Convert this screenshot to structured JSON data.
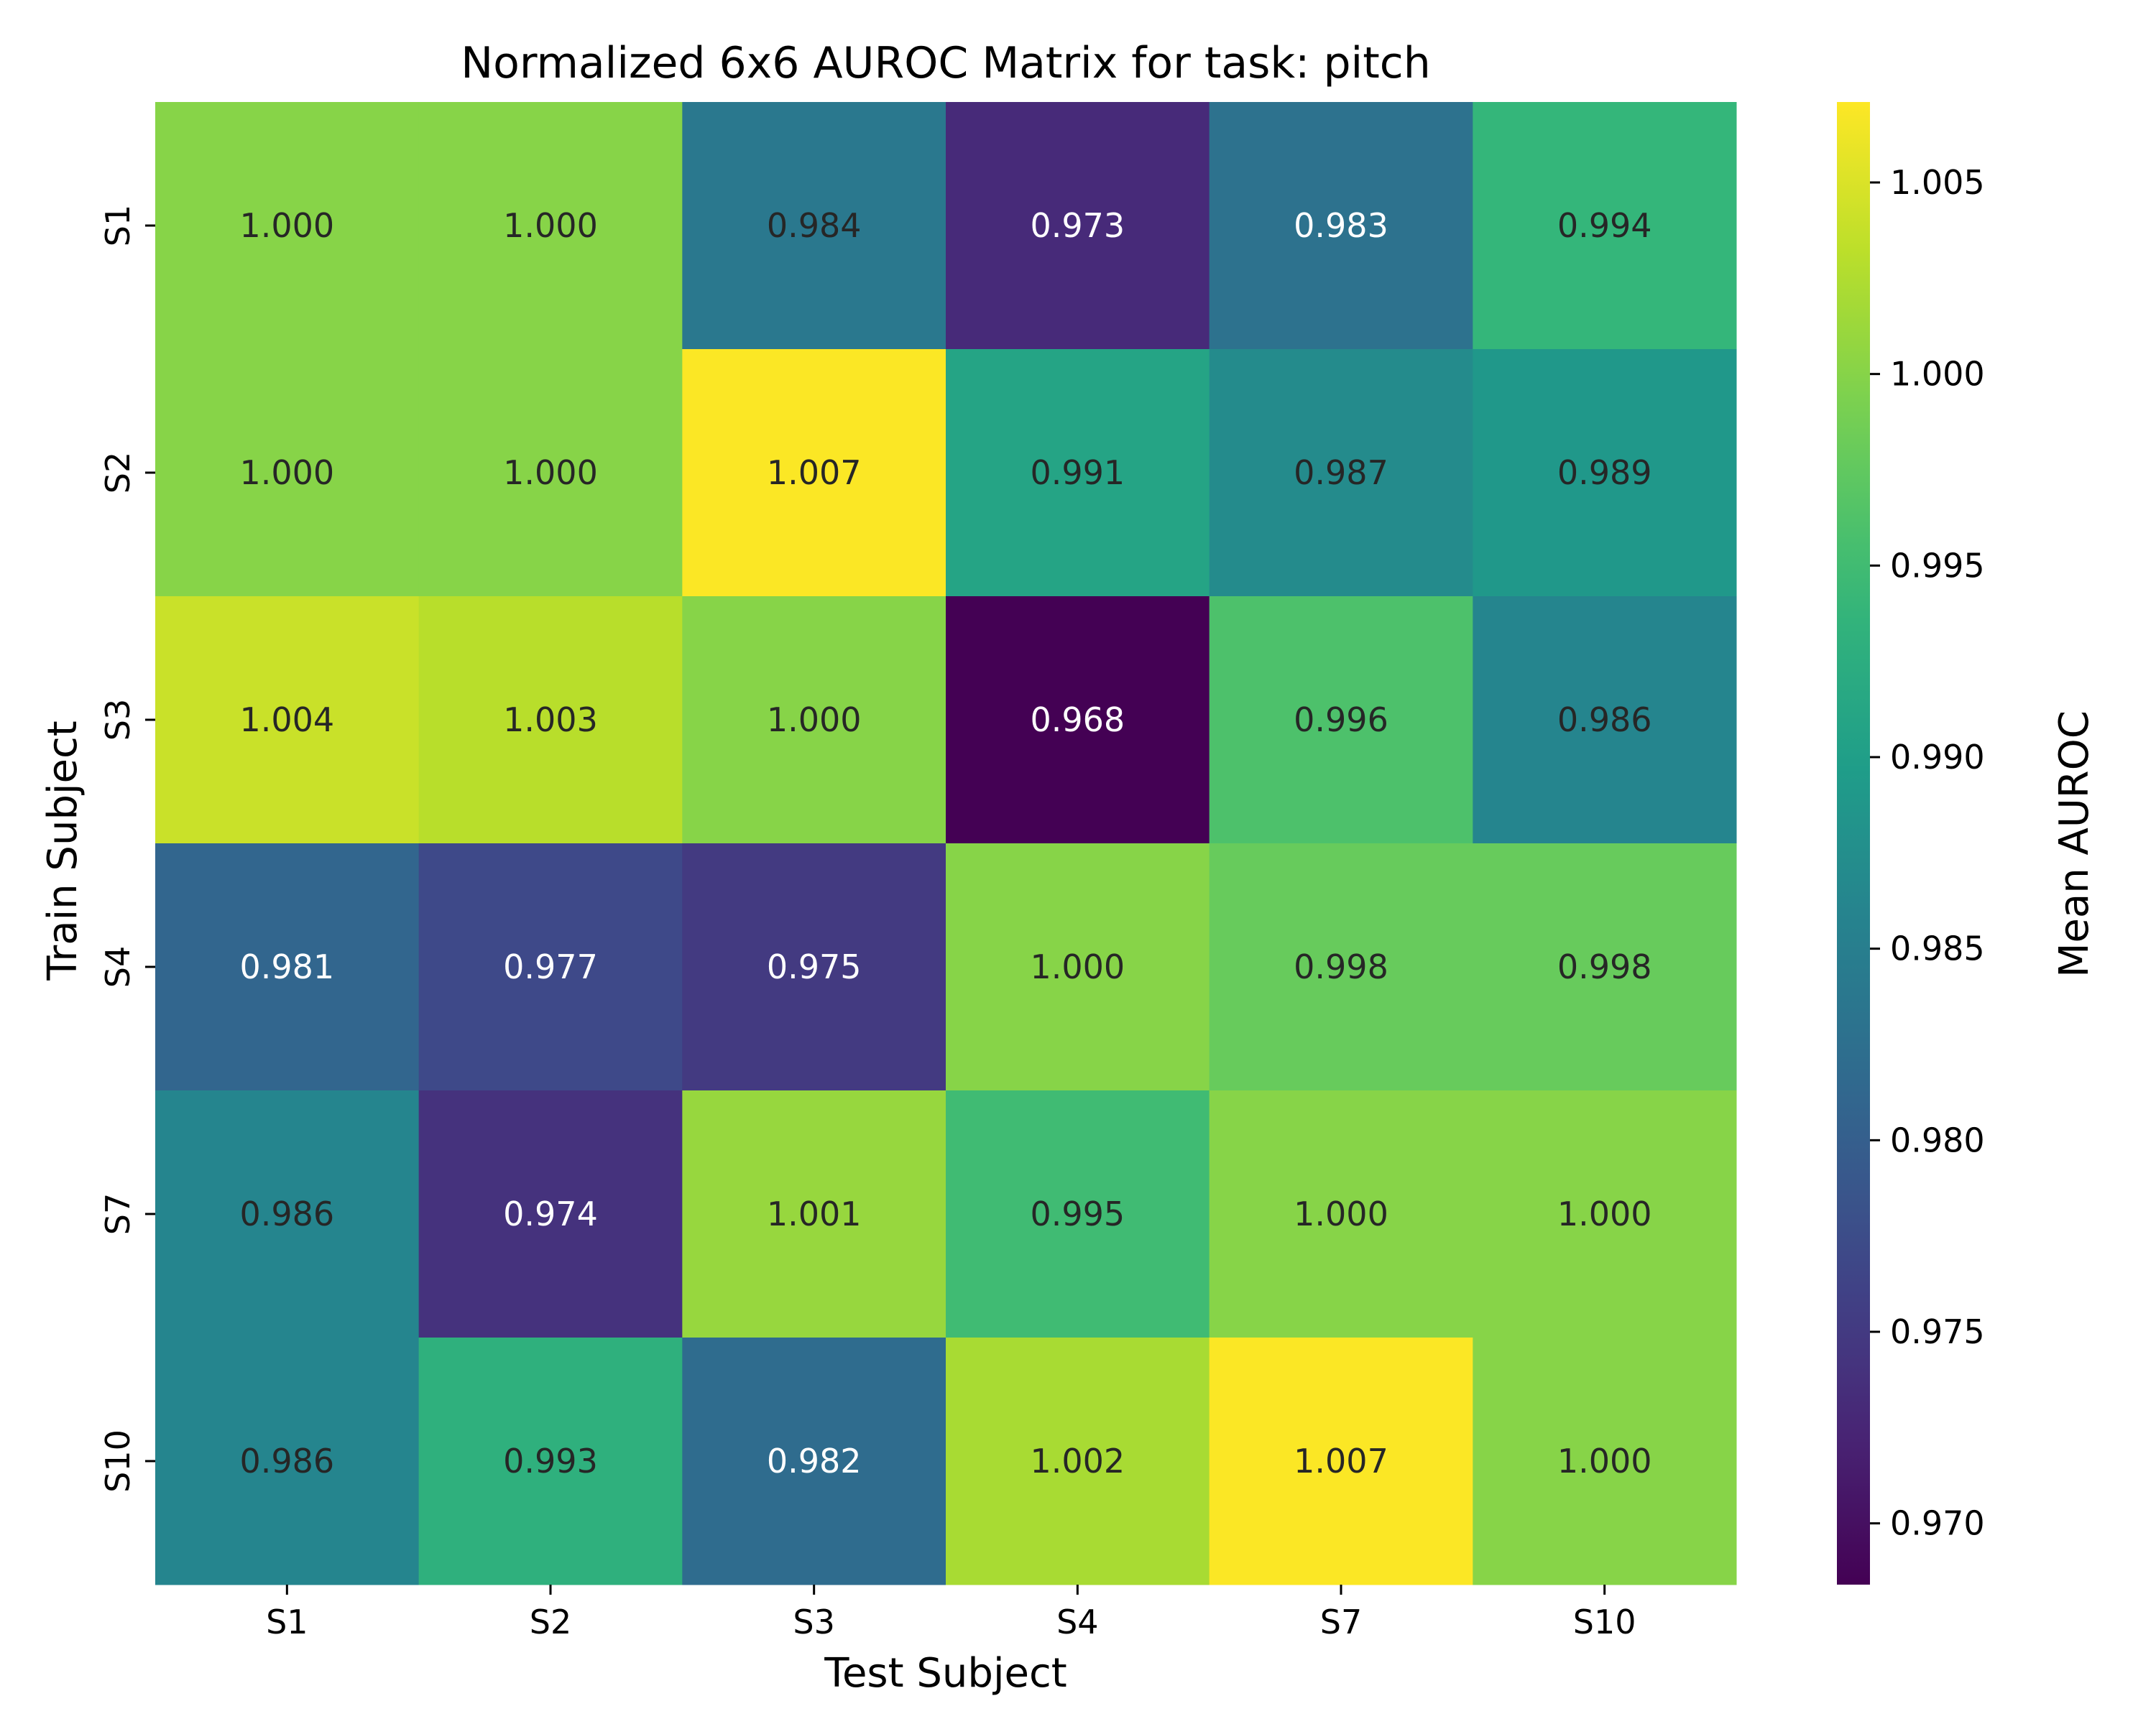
{
  "chart_data": {
    "type": "heatmap",
    "title": "Normalized 6x6 AUROC Matrix for task: pitch",
    "xlabel": "Test Subject",
    "ylabel": "Train Subject",
    "colorbar_label": "Mean AUROC",
    "x_categories": [
      "S1",
      "S2",
      "S3",
      "S4",
      "S7",
      "S10"
    ],
    "y_categories": [
      "S1",
      "S2",
      "S3",
      "S4",
      "S7",
      "S10"
    ],
    "values": [
      [
        1.0,
        1.0,
        0.984,
        0.973,
        0.983,
        0.994
      ],
      [
        1.0,
        1.0,
        1.007,
        0.991,
        0.987,
        0.989
      ],
      [
        1.004,
        1.003,
        1.0,
        0.968,
        0.996,
        0.986
      ],
      [
        0.981,
        0.977,
        0.975,
        1.0,
        0.998,
        0.998
      ],
      [
        0.986,
        0.974,
        1.001,
        0.995,
        1.0,
        1.0
      ],
      [
        0.986,
        0.993,
        0.982,
        1.002,
        1.007,
        1.0
      ]
    ],
    "value_format": "0.000",
    "colormap": "viridis",
    "vmin": 0.9684,
    "vmax": 1.0071,
    "colorbar_ticks": [
      "0.970",
      "0.975",
      "0.980",
      "0.985",
      "0.990",
      "0.995",
      "1.000",
      "1.005"
    ],
    "text_color_dark": "#262626",
    "text_color_light": "#ffffff"
  }
}
